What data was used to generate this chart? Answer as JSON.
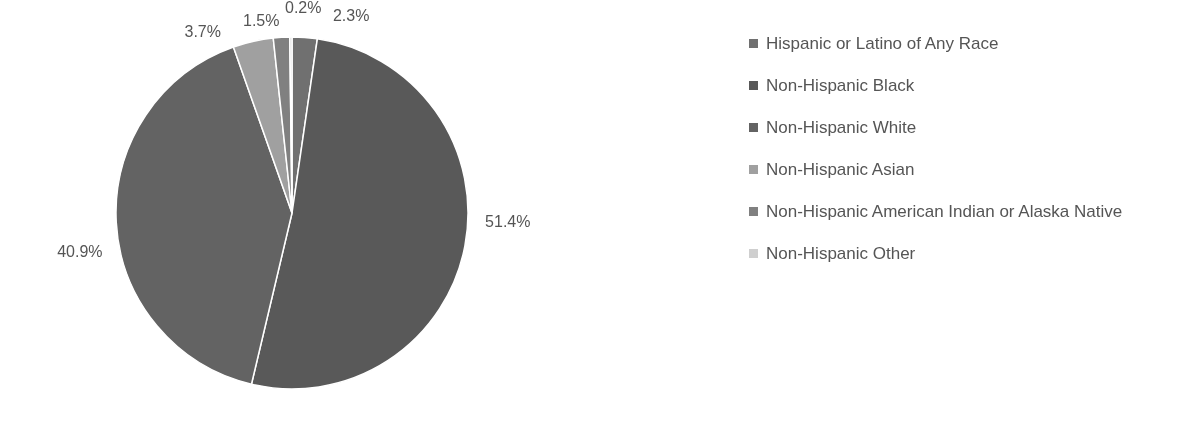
{
  "chart_data": {
    "type": "pie",
    "categories": [
      "Hispanic or Latino of Any Race",
      "Non-Hispanic Black",
      "Non-Hispanic White",
      "Non-Hispanic Asian",
      "Non-Hispanic American Indian or Alaska Native",
      "Non-Hispanic Other"
    ],
    "values": [
      2.3,
      51.4,
      40.9,
      3.7,
      1.5,
      0.2
    ],
    "value_labels": [
      "2.3%",
      "51.4%",
      "40.9%",
      "3.7%",
      "1.5%",
      "0.2%"
    ],
    "colors": [
      "#707070",
      "#595959",
      "#636363",
      "#a0a0a0",
      "#808080",
      "#cfcfcf"
    ],
    "legend": "right"
  }
}
